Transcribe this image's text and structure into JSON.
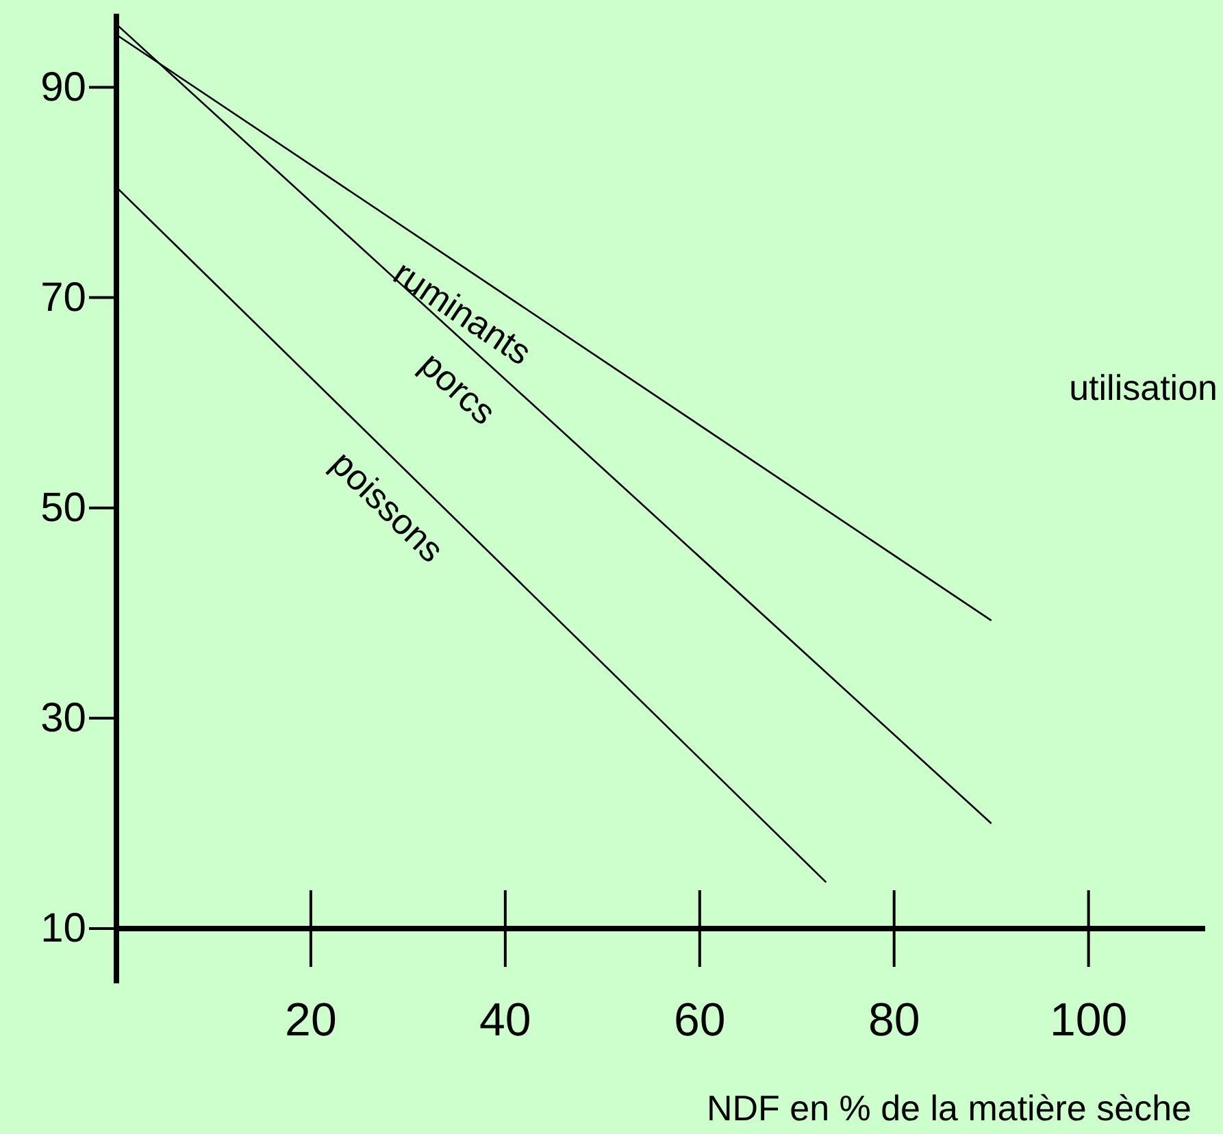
{
  "chart_data": {
    "type": "line",
    "xlabel": "NDF en % de la matière sèche",
    "annotations": [
      "utilisation"
    ],
    "xlim": [
      0,
      112
    ],
    "ylim": [
      10,
      97
    ],
    "xticks": [
      20,
      40,
      60,
      80,
      100
    ],
    "yticks": [
      10,
      30,
      50,
      70,
      90
    ],
    "series": [
      {
        "name": "poissons",
        "color": "#000000",
        "x": [
          0,
          73
        ],
        "values": [
          80.5,
          14.4
        ]
      },
      {
        "name": "porcs",
        "color": "#000000",
        "x": [
          0,
          90
        ],
        "values": [
          96,
          20
        ]
      },
      {
        "name": "ruminants",
        "color": "#000000",
        "x": [
          0,
          90
        ],
        "values": [
          95,
          39.3
        ]
      }
    ],
    "marker": "none",
    "line_style": "solid"
  }
}
